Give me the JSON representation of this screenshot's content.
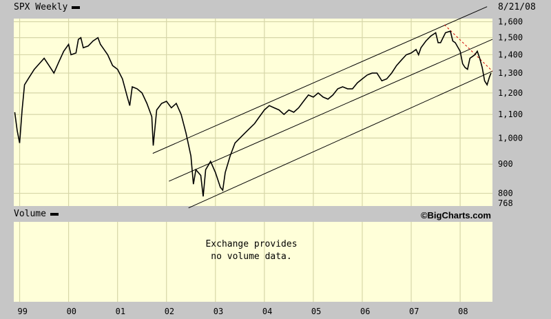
{
  "colors": {
    "plot_bg": "#ffffd9",
    "grid": "#d6d6a8",
    "panel": "#c6c6c6",
    "line": "#000000",
    "trend_red": "#d00000"
  },
  "header": {
    "symbol_label": "SPX Weekly",
    "date": "8/21/08"
  },
  "volume": {
    "label": "Volume",
    "message_line1": "Exchange provides",
    "message_line2": "no volume data."
  },
  "credit": "©BigCharts.com",
  "chart_data": {
    "type": "line",
    "title": "SPX Weekly",
    "log_scale": true,
    "ylim": [
      760,
      1620
    ],
    "xlim": [
      1998.88,
      2008.66
    ],
    "grid": true,
    "y_tick_values": [
      768,
      800,
      900,
      1000,
      1100,
      1200,
      1300,
      1400,
      1500,
      1600
    ],
    "y_tick_labels": [
      "768",
      "800",
      "900",
      "1,000",
      "1,100",
      "1,200",
      "1,300",
      "1,400",
      "1,500",
      "1,600"
    ],
    "x_ticks": [
      {
        "label": "99",
        "x": 1999.0
      },
      {
        "label": "00",
        "x": 2000.0
      },
      {
        "label": "01",
        "x": 2001.0
      },
      {
        "label": "02",
        "x": 2002.0
      },
      {
        "label": "03",
        "x": 2003.0
      },
      {
        "label": "04",
        "x": 2004.0
      },
      {
        "label": "05",
        "x": 2005.0
      },
      {
        "label": "06",
        "x": 2006.0
      },
      {
        "label": "07",
        "x": 2007.0
      },
      {
        "label": "08",
        "x": 2008.0
      }
    ],
    "series": [
      {
        "x": [
          1998.9,
          1998.95,
          1999.0,
          1999.05,
          1999.1,
          1999.2,
          1999.3,
          1999.4,
          1999.5,
          1999.6,
          1999.7,
          1999.8,
          1999.9,
          2000.0,
          2000.05,
          2000.15,
          2000.2,
          2000.25,
          2000.3,
          2000.4,
          2000.5,
          2000.6,
          2000.65,
          2000.7,
          2000.8,
          2000.9,
          2001.0,
          2001.1,
          2001.2,
          2001.25,
          2001.3,
          2001.4,
          2001.5,
          2001.6,
          2001.7,
          2001.73,
          2001.8,
          2001.9,
          2002.0,
          2002.1,
          2002.2,
          2002.3,
          2002.4,
          2002.5,
          2002.55,
          2002.6,
          2002.7,
          2002.75,
          2002.8,
          2002.9,
          2003.0,
          2003.1,
          2003.15,
          2003.2,
          2003.3,
          2003.4,
          2003.5,
          2003.6,
          2003.7,
          2003.8,
          2003.9,
          2004.0,
          2004.1,
          2004.2,
          2004.3,
          2004.4,
          2004.5,
          2004.6,
          2004.7,
          2004.8,
          2004.9,
          2005.0,
          2005.1,
          2005.2,
          2005.3,
          2005.4,
          2005.5,
          2005.6,
          2005.7,
          2005.8,
          2005.9,
          2006.0,
          2006.1,
          2006.2,
          2006.3,
          2006.4,
          2006.5,
          2006.6,
          2006.7,
          2006.8,
          2006.9,
          2007.0,
          2007.1,
          2007.15,
          2007.2,
          2007.3,
          2007.4,
          2007.5,
          2007.55,
          2007.6,
          2007.7,
          2007.8,
          2007.85,
          2007.9,
          2008.0,
          2008.05,
          2008.1,
          2008.15,
          2008.2,
          2008.3,
          2008.35,
          2008.4,
          2008.45,
          2008.5,
          2008.55,
          2008.6,
          2008.63
        ],
        "y": [
          1110,
          1030,
          980,
          1120,
          1240,
          1280,
          1320,
          1350,
          1380,
          1340,
          1300,
          1360,
          1420,
          1460,
          1400,
          1410,
          1490,
          1500,
          1440,
          1450,
          1480,
          1500,
          1460,
          1440,
          1400,
          1340,
          1320,
          1270,
          1180,
          1140,
          1230,
          1220,
          1200,
          1150,
          1090,
          970,
          1120,
          1150,
          1160,
          1130,
          1150,
          1100,
          1020,
          930,
          830,
          880,
          860,
          790,
          880,
          910,
          870,
          820,
          810,
          870,
          930,
          980,
          1000,
          1020,
          1040,
          1060,
          1090,
          1120,
          1140,
          1130,
          1120,
          1100,
          1120,
          1110,
          1130,
          1160,
          1190,
          1180,
          1200,
          1180,
          1170,
          1190,
          1220,
          1230,
          1220,
          1220,
          1250,
          1270,
          1290,
          1300,
          1300,
          1260,
          1270,
          1300,
          1340,
          1370,
          1400,
          1410,
          1430,
          1400,
          1440,
          1480,
          1510,
          1530,
          1470,
          1470,
          1530,
          1540,
          1480,
          1470,
          1420,
          1350,
          1330,
          1320,
          1380,
          1400,
          1420,
          1380,
          1330,
          1260,
          1240,
          1280,
          1300
        ]
      }
    ],
    "trend_lines": [
      {
        "color": "black",
        "points": [
          [
            2001.72,
            940
          ],
          [
            2008.55,
            1700
          ]
        ]
      },
      {
        "color": "black",
        "points": [
          [
            2002.05,
            840
          ],
          [
            2008.66,
            1490
          ]
        ]
      },
      {
        "color": "black",
        "points": [
          [
            2002.45,
            754
          ],
          [
            2008.66,
            1310
          ]
        ]
      },
      {
        "color": "red",
        "style": "dashed",
        "points": [
          [
            2007.68,
            1580
          ],
          [
            2008.66,
            1310
          ]
        ]
      }
    ]
  }
}
